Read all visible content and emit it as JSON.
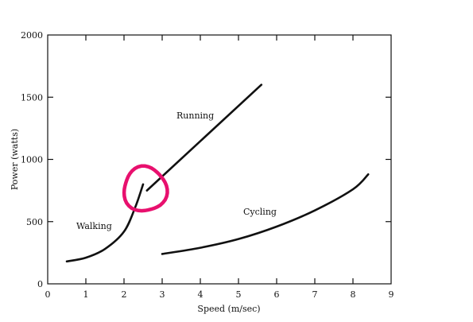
{
  "chart_data": {
    "type": "line",
    "title": "",
    "xlabel": "Speed (m/sec)",
    "ylabel": "Power (watts)",
    "xlim": [
      0,
      9
    ],
    "ylim": [
      0,
      2000
    ],
    "x_ticks": [
      "0",
      "1",
      "2",
      "3",
      "4",
      "5",
      "6",
      "7",
      "8",
      "9"
    ],
    "y_ticks": [
      "0",
      "500",
      "1000",
      "1500",
      "2000"
    ],
    "grid": false,
    "legend": "none",
    "series": [
      {
        "name": "Walking",
        "points": [
          [
            0.5,
            180
          ],
          [
            1.0,
            210
          ],
          [
            1.5,
            280
          ],
          [
            2.0,
            420
          ],
          [
            2.3,
            620
          ],
          [
            2.5,
            800
          ]
        ]
      },
      {
        "name": "Running",
        "points": [
          [
            2.6,
            750
          ],
          [
            5.6,
            1600
          ]
        ]
      },
      {
        "name": "Cycling",
        "points": [
          [
            3.0,
            240
          ],
          [
            4.0,
            290
          ],
          [
            5.0,
            360
          ],
          [
            6.0,
            460
          ],
          [
            7.0,
            590
          ],
          [
            8.0,
            760
          ],
          [
            8.4,
            880
          ]
        ]
      }
    ],
    "annotation": {
      "type": "circle",
      "color": "#e8106e",
      "center": [
        2.55,
        760
      ]
    }
  }
}
